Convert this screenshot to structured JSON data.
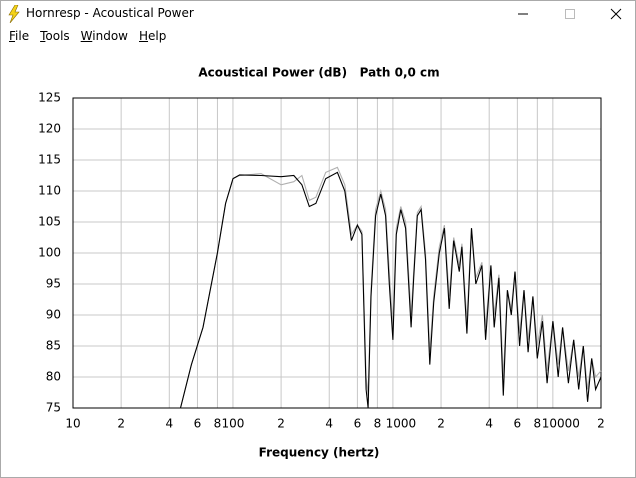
{
  "window": {
    "title": "Hornresp - Acoustical Power"
  },
  "menu": [
    "File",
    "Tools",
    "Window",
    "Help"
  ],
  "chart_data": {
    "type": "line",
    "title": "Acoustical Power (dB)   Path 0,0 cm",
    "xlabel": "Frequency (hertz)",
    "xscale": "log",
    "grid": true,
    "xlim": [
      10,
      20000
    ],
    "ylim": [
      75,
      125
    ],
    "xticks": [
      10,
      {
        "value": 20,
        "label": "2"
      },
      {
        "value": 40,
        "label": "4"
      },
      {
        "value": 60,
        "label": "6"
      },
      {
        "value": 80,
        "label": "8"
      },
      100,
      {
        "value": 200,
        "label": "2"
      },
      {
        "value": 400,
        "label": "4"
      },
      {
        "value": 600,
        "label": "6"
      },
      {
        "value": 800,
        "label": "8"
      },
      1000,
      {
        "value": 2000,
        "label": "2"
      },
      {
        "value": 4000,
        "label": "4"
      },
      {
        "value": 6000,
        "label": "6"
      },
      {
        "value": 8000,
        "label": "8"
      },
      10000,
      {
        "value": 20000,
        "label": "2"
      }
    ],
    "yticks": [
      75,
      80,
      85,
      90,
      95,
      100,
      105,
      110,
      115,
      120,
      125
    ],
    "x": [
      47,
      55,
      65,
      80,
      90,
      100,
      110,
      150,
      200,
      240,
      270,
      300,
      330,
      380,
      450,
      500,
      550,
      600,
      640,
      680,
      700,
      730,
      780,
      840,
      900,
      950,
      1000,
      1050,
      1120,
      1200,
      1300,
      1350,
      1420,
      1500,
      1600,
      1700,
      1800,
      1950,
      2100,
      2250,
      2400,
      2600,
      2700,
      2900,
      3100,
      3300,
      3600,
      3800,
      4100,
      4300,
      4600,
      4900,
      5200,
      5500,
      5800,
      6200,
      6600,
      7000,
      7500,
      8000,
      8600,
      9200,
      10000,
      10800,
      11500,
      12500,
      13500,
      14500,
      15500,
      16500,
      17500,
      18500,
      20000
    ],
    "series": [
      {
        "color": "#b0b0b0",
        "values": [
          75,
          82,
          88,
          100,
          108,
          112,
          112.5,
          112.8,
          111,
          111.5,
          112.5,
          108.5,
          109,
          113,
          113.8,
          111,
          103,
          104.5,
          103.5,
          80,
          77,
          94,
          107,
          110,
          107,
          97,
          88,
          104,
          107.5,
          105,
          90,
          97,
          106.5,
          107.5,
          100,
          84,
          93,
          101,
          104.5,
          93,
          102.5,
          98,
          101.5,
          89,
          104,
          96,
          98.5,
          88,
          98,
          90,
          96.5,
          80,
          94,
          91,
          97,
          87,
          94,
          86,
          93,
          85,
          90,
          81,
          89,
          82,
          88,
          81,
          86,
          80,
          85,
          78,
          83,
          80,
          81
        ]
      },
      {
        "color": "#000000",
        "values": [
          75,
          82,
          88,
          100,
          108,
          112,
          112.6,
          112.5,
          112.3,
          112.5,
          111,
          107.5,
          108,
          112,
          113,
          110,
          102,
          104.5,
          103,
          78,
          75,
          93,
          106,
          109.5,
          106,
          95,
          86,
          103,
          107,
          104,
          88,
          96,
          106,
          107,
          99,
          82,
          92,
          100,
          104,
          91,
          102,
          97,
          101,
          87,
          104,
          95,
          98,
          86,
          98,
          88,
          96,
          77,
          94,
          90,
          97,
          85,
          94,
          84,
          93,
          83,
          89,
          79,
          89,
          80,
          88,
          79,
          86,
          78,
          85,
          76,
          83,
          78,
          80
        ]
      }
    ]
  }
}
